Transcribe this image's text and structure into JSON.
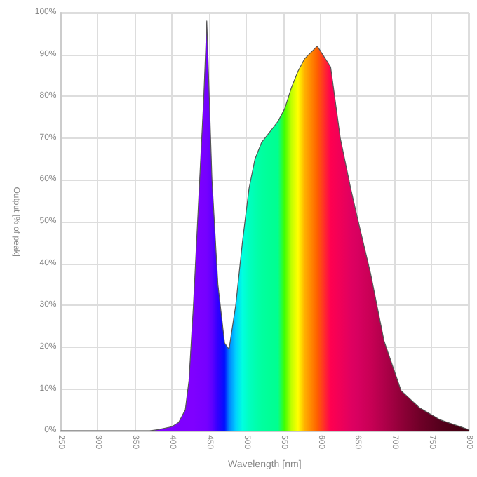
{
  "chart_data": {
    "type": "area",
    "xlabel": "Wavelength [nm]",
    "ylabel": "Output [% of peak]",
    "x": [
      250,
      370,
      382,
      400,
      409,
      418,
      423,
      429,
      436,
      443,
      447,
      454,
      462,
      471,
      477,
      486,
      495,
      504,
      512,
      521,
      530,
      543,
      552,
      561,
      570,
      579,
      596,
      614,
      627,
      641,
      650,
      668,
      686,
      709,
      734,
      762,
      800
    ],
    "series": [
      {
        "values": [
          0,
          0,
          0.3,
          1,
          2,
          5,
          12,
          30,
          55,
          80,
          98,
          60,
          35,
          21,
          19.5,
          30,
          45,
          58,
          65,
          69,
          71,
          74,
          77,
          82,
          86,
          89,
          92,
          87,
          70,
          58,
          51,
          37.5,
          21.5,
          9.6,
          5.5,
          2.6,
          0.3
        ],
        "colors": [
          "#7f00ff",
          "#7f00ff",
          "#7f00ff",
          "#7f00ff",
          "#7f00ff",
          "#7f00ff",
          "#7f00ff",
          "#7f00ff",
          "#7b00ff",
          "#7800ff",
          "#7500ff",
          "#6000ff",
          "#3000ff",
          "#0010ff",
          "#0080ff",
          "#00d0ff",
          "#00ffe0",
          "#00ffc0",
          "#00ffb0",
          "#00ffa0",
          "#00ff98",
          "#00ff90",
          "#40ff00",
          "#c0ff00",
          "#ffff00",
          "#ffb000",
          "#ff6000",
          "#ff0050",
          "#f00058",
          "#e00060",
          "#d80060",
          "#c80055",
          "#b0004a",
          "#900038",
          "#700028",
          "#55001c",
          "#400010"
        ]
      }
    ],
    "xlim": [
      250,
      800
    ],
    "xticks": [
      250,
      300,
      350,
      400,
      450,
      500,
      550,
      600,
      650,
      700,
      750,
      800
    ],
    "ylim": [
      0,
      100
    ],
    "yticks": [
      {
        "value": 0,
        "label": "0%"
      },
      {
        "value": 10,
        "label": "10%"
      },
      {
        "value": 20,
        "label": "20%"
      },
      {
        "value": 30,
        "label": "30%"
      },
      {
        "value": 40,
        "label": "40%"
      },
      {
        "value": 50,
        "label": "50%"
      },
      {
        "value": 60,
        "label": "60%"
      },
      {
        "value": 70,
        "label": "70%"
      },
      {
        "value": 80,
        "label": "80%"
      },
      {
        "value": 90,
        "label": "90%"
      },
      {
        "value": 100,
        "label": "100%"
      }
    ],
    "grid": true
  }
}
